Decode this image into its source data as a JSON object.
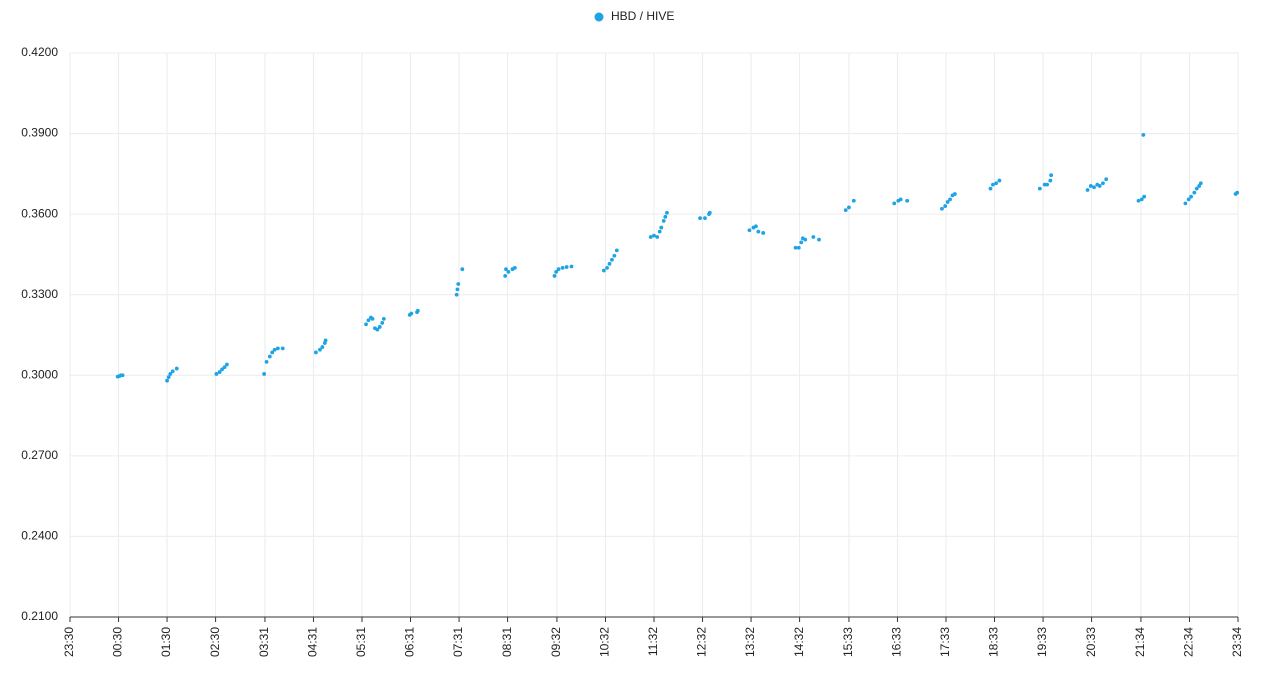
{
  "chart_data": {
    "type": "scatter",
    "series": [
      {
        "name": "HBD / HIVE",
        "color": "#1ea4e6",
        "x": [
          59,
          61,
          63,
          65,
          120,
          122,
          124,
          127,
          132,
          181,
          185,
          188,
          191,
          194,
          240,
          243,
          247,
          250,
          253,
          257,
          263,
          304,
          309,
          312,
          315,
          316,
          366,
          369,
          372,
          374,
          377,
          380,
          383,
          386,
          388,
          420,
          422,
          429,
          430,
          478,
          479,
          480,
          485,
          538,
          539,
          542,
          547,
          550,
          599,
          601,
          604,
          609,
          614,
          620,
          660,
          664,
          667,
          670,
          673,
          676,
          718,
          722,
          726,
          729,
          731,
          734,
          736,
          738,
          779,
          785,
          790,
          791,
          840,
          845,
          848,
          851,
          857,
          897,
          901,
          904,
          906,
          909,
          919,
          926,
          959,
          963,
          969,
          1019,
          1024,
          1027,
          1035,
          1078,
          1082,
          1085,
          1088,
          1091,
          1094,
          1138,
          1141,
          1145,
          1149,
          1199,
          1205,
          1208,
          1212,
          1213,
          1258,
          1262,
          1266,
          1270,
          1273,
          1277,
          1281,
          1321,
          1325,
          1328,
          1327,
          1379,
          1383,
          1386,
          1390,
          1393,
          1396,
          1398,
          1441,
          1443
        ],
        "values": [
          0.2995,
          0.2997,
          0.3,
          0.3,
          0.298,
          0.2993,
          0.3005,
          0.3015,
          0.3025,
          0.3005,
          0.3012,
          0.3022,
          0.303,
          0.304,
          0.3005,
          0.305,
          0.307,
          0.3085,
          0.3095,
          0.31,
          0.31,
          0.3085,
          0.3095,
          0.3105,
          0.312,
          0.313,
          0.319,
          0.3205,
          0.3215,
          0.321,
          0.3175,
          0.317,
          0.318,
          0.3195,
          0.321,
          0.3225,
          0.323,
          0.3235,
          0.324,
          0.33,
          0.332,
          0.334,
          0.3395,
          0.337,
          0.3395,
          0.3385,
          0.3395,
          0.34,
          0.337,
          0.3385,
          0.3395,
          0.34,
          0.3403,
          0.3405,
          0.339,
          0.34,
          0.3415,
          0.343,
          0.3445,
          0.3465,
          0.3515,
          0.352,
          0.3515,
          0.3535,
          0.355,
          0.3575,
          0.359,
          0.3605,
          0.3585,
          0.3585,
          0.36,
          0.3605,
          0.354,
          0.355,
          0.3555,
          0.3535,
          0.353,
          0.3475,
          0.3475,
          0.3495,
          0.351,
          0.3505,
          0.3515,
          0.3505,
          0.3615,
          0.3625,
          0.365,
          0.364,
          0.365,
          0.3655,
          0.365,
          0.362,
          0.363,
          0.3645,
          0.3655,
          0.367,
          0.3675,
          0.3695,
          0.371,
          0.3715,
          0.3725,
          0.3695,
          0.371,
          0.371,
          0.3725,
          0.3745,
          0.369,
          0.3705,
          0.37,
          0.371,
          0.3705,
          0.3715,
          0.373,
          0.365,
          0.3655,
          0.3665,
          0.3895,
          0.364,
          0.3655,
          0.3665,
          0.368,
          0.3695,
          0.3705,
          0.3715,
          0.3675,
          0.368
        ]
      }
    ],
    "xlim": [
      0,
      1444
    ],
    "xticks": [
      {
        "value": 0,
        "label": "23:30"
      },
      {
        "value": 60,
        "label": "00:30"
      },
      {
        "value": 120,
        "label": "01:30"
      },
      {
        "value": 180,
        "label": "02:30"
      },
      {
        "value": 241,
        "label": "03:31"
      },
      {
        "value": 301,
        "label": "04:31"
      },
      {
        "value": 361,
        "label": "05:31"
      },
      {
        "value": 421,
        "label": "06:31"
      },
      {
        "value": 481,
        "label": "07:31"
      },
      {
        "value": 541,
        "label": "08:31"
      },
      {
        "value": 602,
        "label": "09:32"
      },
      {
        "value": 662,
        "label": "10:32"
      },
      {
        "value": 722,
        "label": "11:32"
      },
      {
        "value": 782,
        "label": "12:32"
      },
      {
        "value": 842,
        "label": "13:32"
      },
      {
        "value": 902,
        "label": "14:32"
      },
      {
        "value": 963,
        "label": "15:33"
      },
      {
        "value": 1023,
        "label": "16:33"
      },
      {
        "value": 1083,
        "label": "17:33"
      },
      {
        "value": 1143,
        "label": "18:33"
      },
      {
        "value": 1203,
        "label": "19:33"
      },
      {
        "value": 1263,
        "label": "20:33"
      },
      {
        "value": 1324,
        "label": "21:34"
      },
      {
        "value": 1384,
        "label": "22:34"
      },
      {
        "value": 1444,
        "label": "23:34"
      }
    ],
    "ylim": [
      0.21,
      0.42
    ],
    "yticks": [
      {
        "value": 0.21,
        "label": "0.2100"
      },
      {
        "value": 0.24,
        "label": "0.2400"
      },
      {
        "value": 0.27,
        "label": "0.2700"
      },
      {
        "value": 0.3,
        "label": "0.3000"
      },
      {
        "value": 0.33,
        "label": "0.3300"
      },
      {
        "value": 0.36,
        "label": "0.3600"
      },
      {
        "value": 0.39,
        "label": "0.3900"
      },
      {
        "value": 0.42,
        "label": "0.4200"
      }
    ],
    "grid": true,
    "legend": "top"
  }
}
